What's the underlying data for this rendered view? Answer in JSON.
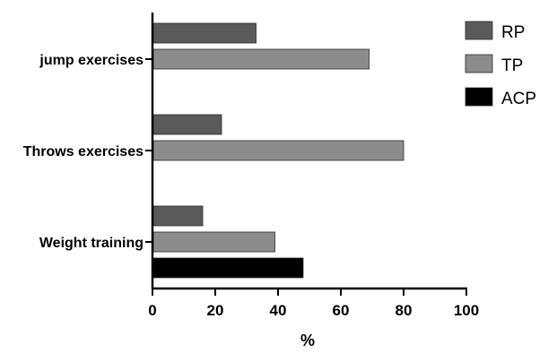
{
  "chart_data": {
    "type": "bar",
    "orientation": "horizontal",
    "title": "",
    "xlabel": "%",
    "ylabel": "",
    "xlim": [
      0,
      100
    ],
    "xticks": [
      0,
      20,
      40,
      60,
      80,
      100
    ],
    "grid": false,
    "legend_position": "top-right",
    "categories": [
      "jump exercises",
      "Throws exercises",
      "Weight training"
    ],
    "series": [
      {
        "name": "RP",
        "color": "#5a5a5a",
        "values": [
          33,
          22,
          16
        ]
      },
      {
        "name": "TP",
        "color": "#8c8c8c",
        "values": [
          69,
          80,
          39
        ]
      },
      {
        "name": "ACP",
        "color": "#000000",
        "values": [
          0,
          0,
          48
        ]
      }
    ]
  }
}
